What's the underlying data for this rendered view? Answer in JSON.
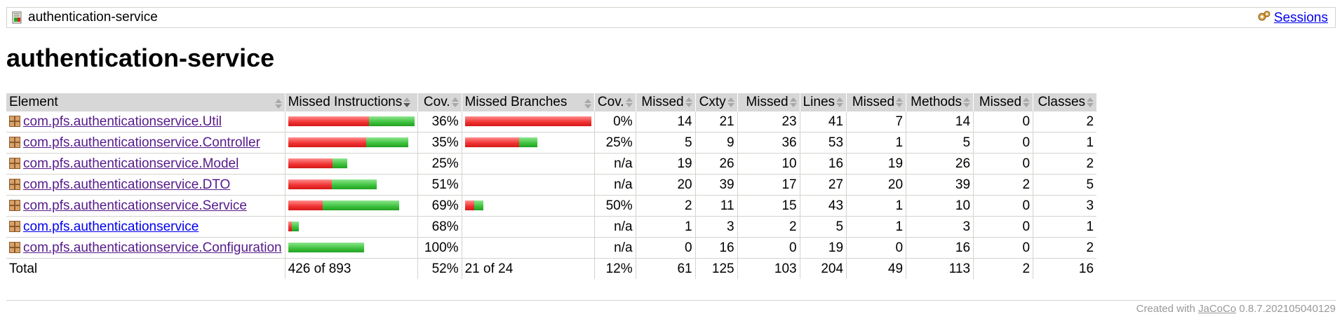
{
  "breadcrumb": {
    "title": "authentication-service",
    "sessions_label": "Sessions"
  },
  "page_title": "authentication-service",
  "headers": {
    "element": "Element",
    "missed_instructions": "Missed Instructions",
    "cov1": "Cov.",
    "missed_branches": "Missed Branches",
    "cov2": "Cov.",
    "missed_cxty": "Missed",
    "cxty": "Cxty",
    "missed_lines": "Missed",
    "lines": "Lines",
    "missed_methods": "Missed",
    "methods": "Methods",
    "missed_classes": "Missed",
    "classes": "Classes"
  },
  "rows": [
    {
      "name": "com.pfs.authenticationservice.Util",
      "instr_red": 0.64,
      "instr_green": 0.36,
      "instr_scale": 1.0,
      "cov1": "36%",
      "branch_red": 1.0,
      "branch_green": 0.0,
      "branch_scale": 1.0,
      "cov2": "0%",
      "missed_cxty": "14",
      "cxty": "21",
      "missed_lines": "23",
      "lines": "41",
      "missed_methods": "7",
      "methods": "14",
      "missed_classes": "0",
      "classes": "2"
    },
    {
      "name": "com.pfs.authenticationservice.Controller",
      "instr_red": 0.65,
      "instr_green": 0.35,
      "instr_scale": 0.95,
      "cov1": "35%",
      "branch_red": 0.75,
      "branch_green": 0.25,
      "branch_scale": 0.57,
      "cov2": "25%",
      "missed_cxty": "5",
      "cxty": "9",
      "missed_lines": "36",
      "lines": "53",
      "missed_methods": "1",
      "methods": "5",
      "missed_classes": "0",
      "classes": "1"
    },
    {
      "name": "com.pfs.authenticationservice.Model",
      "instr_red": 0.75,
      "instr_green": 0.25,
      "instr_scale": 0.47,
      "cov1": "25%",
      "branch_red": 0,
      "branch_green": 0,
      "branch_scale": 0,
      "cov2": "n/a",
      "missed_cxty": "19",
      "cxty": "26",
      "missed_lines": "10",
      "lines": "16",
      "missed_methods": "19",
      "methods": "26",
      "missed_classes": "0",
      "classes": "2"
    },
    {
      "name": "com.pfs.authenticationservice.DTO",
      "instr_red": 0.49,
      "instr_green": 0.51,
      "instr_scale": 0.7,
      "cov1": "51%",
      "branch_red": 0,
      "branch_green": 0,
      "branch_scale": 0,
      "cov2": "n/a",
      "missed_cxty": "20",
      "cxty": "39",
      "missed_lines": "17",
      "lines": "27",
      "missed_methods": "20",
      "methods": "39",
      "missed_classes": "2",
      "classes": "5"
    },
    {
      "name": "com.pfs.authenticationservice.Service",
      "instr_red": 0.31,
      "instr_green": 0.69,
      "instr_scale": 0.88,
      "cov1": "69%",
      "branch_red": 0.5,
      "branch_green": 0.5,
      "branch_scale": 0.14,
      "cov2": "50%",
      "missed_cxty": "2",
      "cxty": "11",
      "missed_lines": "15",
      "lines": "43",
      "missed_methods": "1",
      "methods": "10",
      "missed_classes": "0",
      "classes": "3"
    },
    {
      "name": "com.pfs.authenticationservice",
      "instr_red": 0.32,
      "instr_green": 0.68,
      "instr_scale": 0.08,
      "cov1": "68%",
      "branch_red": 0,
      "branch_green": 0,
      "branch_scale": 0,
      "cov2": "n/a",
      "missed_cxty": "1",
      "cxty": "3",
      "missed_lines": "2",
      "lines": "5",
      "missed_methods": "1",
      "methods": "3",
      "missed_classes": "0",
      "classes": "1"
    },
    {
      "name": "com.pfs.authenticationservice.Configuration",
      "instr_red": 0.0,
      "instr_green": 1.0,
      "instr_scale": 0.6,
      "cov1": "100%",
      "branch_red": 0,
      "branch_green": 0,
      "branch_scale": 0,
      "cov2": "n/a",
      "missed_cxty": "0",
      "cxty": "16",
      "missed_lines": "0",
      "lines": "19",
      "missed_methods": "0",
      "methods": "16",
      "missed_classes": "0",
      "classes": "2"
    }
  ],
  "total": {
    "label": "Total",
    "missed_instructions": "426 of 893",
    "cov1": "52%",
    "missed_branches": "21 of 24",
    "cov2": "12%",
    "missed_cxty": "61",
    "cxty": "125",
    "missed_lines": "103",
    "lines": "204",
    "missed_methods": "49",
    "methods": "113",
    "missed_classes": "2",
    "classes": "16"
  },
  "footer": {
    "prefix": "Created with ",
    "link": "JaCoCo",
    "version": " 0.8.7.202105040129"
  },
  "colors": {
    "missed": "#f03030",
    "covered": "#3cc13c",
    "header_bg": "#d7d7d7"
  }
}
